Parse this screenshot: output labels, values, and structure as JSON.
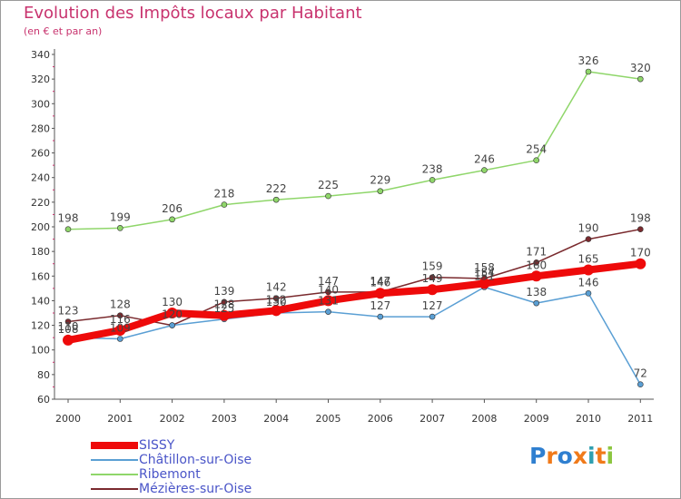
{
  "chart_data": {
    "type": "line",
    "title": "Evolution des Impôts locaux par Habitant",
    "subtitle": "(en € et par an)",
    "xlabel": "",
    "ylabel": "",
    "ylim": [
      60,
      340
    ],
    "yticks": [
      60,
      80,
      100,
      120,
      140,
      160,
      180,
      200,
      220,
      240,
      260,
      280,
      300,
      320,
      340
    ],
    "x": [
      "2000",
      "2001",
      "2002",
      "2003",
      "2004",
      "2005",
      "2006",
      "2007",
      "2008",
      "2009",
      "2010",
      "2011"
    ],
    "series": [
      {
        "name": "Ribemont",
        "color": "#8fd66a",
        "values": [
          198,
          199,
          206,
          218,
          222,
          225,
          229,
          238,
          246,
          254,
          326,
          320
        ],
        "labels": [
          "198",
          "199",
          "206",
          "218",
          "222",
          "225",
          "229",
          "238",
          "246",
          "254",
          "326",
          "320"
        ]
      },
      {
        "name": "Mézières-sur-Oise",
        "color": "#7a2a2e",
        "values": [
          123,
          128,
          120,
          139,
          142,
          147,
          147,
          159,
          158,
          171,
          190,
          198
        ],
        "labels": [
          "123",
          "128",
          "",
          "139",
          "142",
          "147",
          "147",
          "159",
          "158",
          "171",
          "190",
          "198"
        ]
      },
      {
        "name": "Châtillon-sur-Oise",
        "color": "#5a9fd4",
        "values": [
          110,
          109,
          120,
          125,
          130,
          131,
          127,
          127,
          151,
          138,
          146,
          72
        ],
        "labels": [
          "110",
          "109",
          "120",
          "125",
          "130",
          "131",
          "127",
          "127",
          "151",
          "138",
          "146",
          "72"
        ]
      },
      {
        "name": "SISSY",
        "color": "#ee0a0a",
        "values": [
          108,
          116,
          130,
          128,
          132,
          140,
          146,
          149,
          154,
          160,
          165,
          170
        ],
        "labels": [
          "108",
          "116",
          "130",
          "128",
          "132",
          "140",
          "146",
          "149",
          "154",
          "160",
          "165",
          "170"
        ]
      }
    ],
    "legend": [
      "SISSY",
      "Châtillon-sur-Oise",
      "Ribemont",
      "Mézières-sur-Oise"
    ],
    "legend_position": "bottom-left",
    "grid": false
  },
  "logo": {
    "text": "Proxiti",
    "letters": [
      "P",
      "r",
      "o",
      "x",
      "i",
      "t",
      "i"
    ],
    "colors": [
      "#2f7fd0",
      "#f07a1a",
      "#2f7fd0",
      "#f07a1a",
      "#2f9fb0",
      "#f07a1a",
      "#8cc63f"
    ]
  }
}
